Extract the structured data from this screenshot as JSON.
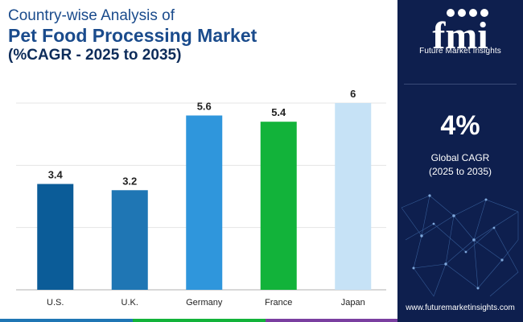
{
  "header": {
    "line1": "Country-wise Analysis of",
    "line2": "Pet Food Processing Market",
    "line3": "(%CAGR - 2025 to 2035)",
    "line1_color": "#1a4b8c",
    "line2_color": "#1a4b8c",
    "line3_color": "#0d2c5a"
  },
  "sidebar": {
    "logo_text": "Future Market Insights",
    "cagr_value": "4%",
    "cagr_label_line1": "Global CAGR",
    "cagr_label_line2": "(2025 to 2035)",
    "website": "www.futuremarketinsights.com",
    "background_color": "#0e1f4e"
  },
  "chart_data": {
    "type": "bar",
    "categories": [
      "U.S.",
      "U.K.",
      "Germany",
      "France",
      "Japan"
    ],
    "values": [
      3.4,
      3.2,
      5.6,
      5.4,
      6
    ],
    "value_labels": [
      "3.4",
      "3.2",
      "5.6",
      "5.4",
      "6"
    ],
    "colors": [
      "#0b5c98",
      "#1f76b4",
      "#2f96dc",
      "#12b33a",
      "#c6e2f6"
    ],
    "title": "",
    "xlabel": "",
    "ylabel": "",
    "ylim": [
      0,
      6
    ],
    "grid": true
  },
  "bottom_strip_colors": [
    "#1f76b4",
    "#12b33a",
    "#7a3fa0"
  ]
}
